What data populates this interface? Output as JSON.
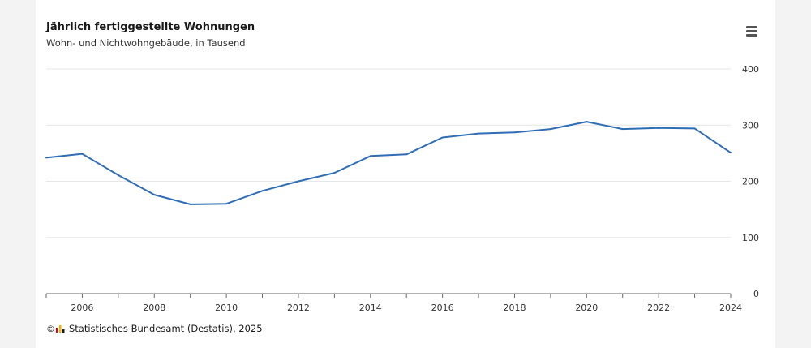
{
  "header": {
    "title": "Jährlich fertiggestellte Wohnungen",
    "subtitle": "Wohn- und Nichtwohngebäude, in Tausend"
  },
  "menu": {
    "icon": "hamburger-menu-icon"
  },
  "footer": {
    "logo_icon": "destatis-logo-icon",
    "logo_prefix": "©",
    "source": "Statistisches Bundesamt (Destatis), 2025"
  },
  "colors": {
    "line": "#2f6db5",
    "grid": "#e6e6e6",
    "axis": "#666666"
  },
  "chart_data": {
    "type": "line",
    "title": "Jährlich fertiggestellte Wohnungen",
    "subtitle": "Wohn- und Nichtwohngebäude, in Tausend",
    "xlabel": "",
    "ylabel": "",
    "x": [
      2005,
      2006,
      2007,
      2008,
      2009,
      2010,
      2011,
      2012,
      2013,
      2014,
      2015,
      2016,
      2017,
      2018,
      2019,
      2020,
      2021,
      2022,
      2023,
      2024
    ],
    "series": [
      {
        "name": "",
        "values": [
          242,
          249,
          211,
          176,
          159,
          160,
          183,
          200,
          215,
          245,
          248,
          278,
          285,
          287,
          293,
          306,
          293,
          295,
          294,
          251
        ]
      }
    ],
    "xlim": [
      2005,
      2024
    ],
    "ylim": [
      0,
      400
    ],
    "xticks": [
      2006,
      2008,
      2010,
      2012,
      2014,
      2016,
      2018,
      2020,
      2022,
      2024
    ],
    "yticks": [
      0,
      100,
      200,
      300,
      400
    ],
    "grid": true,
    "y_axis_side": "right",
    "legend": "none"
  }
}
